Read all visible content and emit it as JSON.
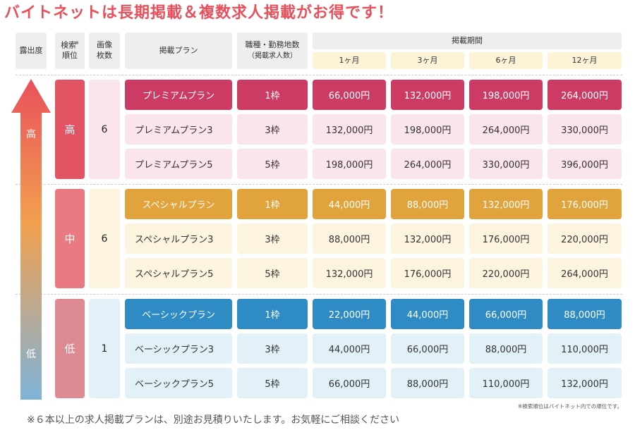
{
  "headline": "バイトネットは長期掲載＆複数求人掲載がお得です！",
  "header": {
    "exposure": "露出度",
    "search_rank_1": "検索",
    "search_rank_2": "順位",
    "search_rank_mark": "※",
    "image_count_1": "画像",
    "image_count_2": "枚数",
    "plan": "掲載プラン",
    "slots_1": "職種・勤務地数",
    "slots_2": "（掲載求人数）",
    "period": "掲載期間",
    "months": [
      "1ヶ月",
      "3ヶ月",
      "6ヶ月",
      "12ヶ月"
    ]
  },
  "arrow": {
    "high": "高",
    "low": "低"
  },
  "colors": {
    "premium": "#cb3b63",
    "premium_bg": "#fbe5ec",
    "premium_rank": "#e25363",
    "special": "#e1a33b",
    "special_bg": "#fdf4df",
    "special_rank": "#ea7a82",
    "basic": "#2e8bc4",
    "basic_bg": "#e2f1f8",
    "basic_rank": "#de8a93"
  },
  "groups": [
    {
      "rank": "高",
      "images": "6",
      "rows": [
        {
          "plan": "プレミアムプラン",
          "slots": "1枠",
          "prices": [
            "66,000円",
            "132,000円",
            "198,000円",
            "264,000円"
          ]
        },
        {
          "plan": "プレミアムプラン3",
          "slots": "3枠",
          "prices": [
            "132,000円",
            "198,000円",
            "264,000円",
            "330,000円"
          ]
        },
        {
          "plan": "プレミアムプラン5",
          "slots": "5枠",
          "prices": [
            "198,000円",
            "264,000円",
            "330,000円",
            "396,000円"
          ]
        }
      ]
    },
    {
      "rank": "中",
      "images": "6",
      "rows": [
        {
          "plan": "スペシャルプラン",
          "slots": "1枠",
          "prices": [
            "44,000円",
            "88,000円",
            "132,000円",
            "176,000円"
          ]
        },
        {
          "plan": "スペシャルプラン3",
          "slots": "3枠",
          "prices": [
            "88,000円",
            "132,000円",
            "176,000円",
            "220,000円"
          ]
        },
        {
          "plan": "スペシャルプラン5",
          "slots": "5枠",
          "prices": [
            "132,000円",
            "176,000円",
            "220,000円",
            "264,000円"
          ]
        }
      ]
    },
    {
      "rank": "低",
      "images": "1",
      "rows": [
        {
          "plan": "ベーシックプラン",
          "slots": "1枠",
          "prices": [
            "22,000円",
            "44,000円",
            "66,000円",
            "88,000円"
          ]
        },
        {
          "plan": "ベーシックプラン3",
          "slots": "3枠",
          "prices": [
            "44,000円",
            "66,000円",
            "88,000円",
            "110,000円"
          ]
        },
        {
          "plan": "ベーシックプラン5",
          "slots": "5枠",
          "prices": [
            "66,000円",
            "88,000円",
            "110,000円",
            "132,000円"
          ]
        }
      ]
    }
  ],
  "search_note": "※検索順位はバイトネット内での順位です。",
  "footnote": "※６本以上の求人掲載プランは、別途お見積りいたします。お気軽にご相談ください"
}
